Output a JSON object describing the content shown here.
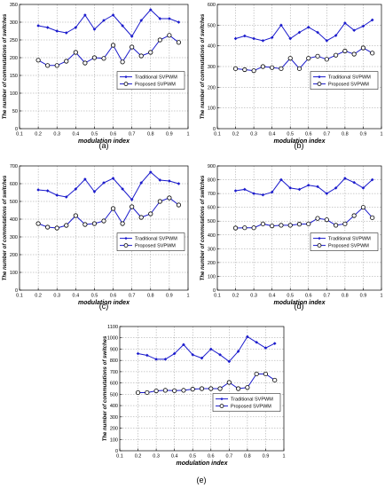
{
  "chart_data": [
    {
      "type": "line",
      "panel_label": "(a)",
      "xlabel": "modulation index",
      "ylabel": "The number of commutations of switches",
      "xlim": [
        0.1,
        1
      ],
      "ylim": [
        0,
        350
      ],
      "xticks": [
        "0.1",
        "0.2",
        "0.3",
        "0.4",
        "0.5",
        "0.6",
        "0.7",
        "0.8",
        "0.9",
        "1"
      ],
      "yticks": [
        "0",
        "50",
        "100",
        "150",
        "200",
        "250",
        "300",
        "350"
      ],
      "yticks_values": [
        0,
        50,
        100,
        150,
        200,
        250,
        300,
        350
      ],
      "grid": true,
      "legend_position": "center-right",
      "x": [
        0.2,
        0.25,
        0.3,
        0.35,
        0.4,
        0.45,
        0.5,
        0.55,
        0.6,
        0.65,
        0.7,
        0.75,
        0.8,
        0.85,
        0.9,
        0.95
      ],
      "series": [
        {
          "name": "Traditional SVPWM",
          "marker": "diamond",
          "values": [
            290,
            285,
            275,
            270,
            285,
            320,
            280,
            305,
            320,
            290,
            260,
            305,
            335,
            310,
            310,
            300
          ]
        },
        {
          "name": "Proposed SVPWM",
          "marker": "circle",
          "values": [
            193,
            178,
            178,
            190,
            215,
            185,
            200,
            198,
            235,
            188,
            230,
            205,
            215,
            250,
            263,
            243
          ]
        }
      ]
    },
    {
      "type": "line",
      "panel_label": "(b)",
      "xlabel": "modulation index",
      "ylabel": "The number of commutations of switches",
      "xlim": [
        0.1,
        1
      ],
      "ylim": [
        0,
        600
      ],
      "xticks": [
        "0.1",
        "0.2",
        "0.3",
        "0.4",
        "0.5",
        "0.6",
        "0.7",
        "0.8",
        "0.9",
        "1"
      ],
      "yticks": [
        "0",
        "100",
        "200",
        "300",
        "400",
        "500",
        "600"
      ],
      "yticks_values": [
        0,
        100,
        200,
        300,
        400,
        500,
        600
      ],
      "grid": true,
      "legend_position": "center-right",
      "x": [
        0.2,
        0.25,
        0.3,
        0.35,
        0.4,
        0.45,
        0.5,
        0.55,
        0.6,
        0.65,
        0.7,
        0.75,
        0.8,
        0.85,
        0.9,
        0.95
      ],
      "series": [
        {
          "name": "Traditional SVPWM",
          "marker": "diamond",
          "values": [
            435,
            448,
            435,
            425,
            440,
            500,
            435,
            465,
            490,
            465,
            425,
            450,
            510,
            475,
            495,
            525
          ]
        },
        {
          "name": "Proposed SVPWM",
          "marker": "circle",
          "values": [
            290,
            285,
            280,
            300,
            295,
            290,
            340,
            290,
            340,
            350,
            335,
            355,
            375,
            360,
            390,
            365
          ]
        }
      ]
    },
    {
      "type": "line",
      "panel_label": "(c)",
      "xlabel": "modulation index",
      "ylabel": "The number of commutations of switches",
      "xlim": [
        0.1,
        1
      ],
      "ylim": [
        0,
        700
      ],
      "xticks": [
        "0.1",
        "0.2",
        "0.3",
        "0.4",
        "0.5",
        "0.6",
        "0.7",
        "0.8",
        "0.9",
        "1"
      ],
      "yticks": [
        "0",
        "100",
        "200",
        "300",
        "400",
        "500",
        "600",
        "700"
      ],
      "yticks_values": [
        0,
        100,
        200,
        300,
        400,
        500,
        600,
        700
      ],
      "grid": true,
      "legend_position": "center-right",
      "x": [
        0.2,
        0.25,
        0.3,
        0.35,
        0.4,
        0.45,
        0.5,
        0.55,
        0.6,
        0.65,
        0.7,
        0.75,
        0.8,
        0.85,
        0.9,
        0.95
      ],
      "series": [
        {
          "name": "Traditional SVPWM",
          "marker": "diamond",
          "values": [
            565,
            560,
            535,
            525,
            570,
            625,
            555,
            605,
            630,
            570,
            510,
            605,
            665,
            620,
            615,
            600
          ]
        },
        {
          "name": "Proposed SVPWM",
          "marker": "circle",
          "values": [
            375,
            355,
            350,
            365,
            420,
            370,
            375,
            390,
            460,
            375,
            470,
            410,
            430,
            500,
            520,
            480
          ]
        }
      ]
    },
    {
      "type": "line",
      "panel_label": "(d)",
      "xlabel": "modulation index",
      "ylabel": "The number of commutations of switches",
      "xlim": [
        0.1,
        1
      ],
      "ylim": [
        0,
        900
      ],
      "xticks": [
        "0.1",
        "0.2",
        "0.3",
        "0.4",
        "0.5",
        "0.6",
        "0.7",
        "0.8",
        "0.9",
        "1"
      ],
      "yticks": [
        "0",
        "100",
        "200",
        "300",
        "400",
        "500",
        "600",
        "700",
        "800",
        "900"
      ],
      "yticks_values": [
        0,
        100,
        200,
        300,
        400,
        500,
        600,
        700,
        800,
        900
      ],
      "grid": true,
      "legend_position": "center-right",
      "x": [
        0.2,
        0.25,
        0.3,
        0.35,
        0.4,
        0.45,
        0.5,
        0.55,
        0.6,
        0.65,
        0.7,
        0.75,
        0.8,
        0.85,
        0.9,
        0.95
      ],
      "series": [
        {
          "name": "Traditional SVPWM",
          "marker": "diamond",
          "values": [
            720,
            730,
            700,
            690,
            710,
            800,
            740,
            730,
            760,
            750,
            700,
            740,
            810,
            780,
            740,
            800
          ]
        },
        {
          "name": "Proposed SVPWM",
          "marker": "circle",
          "values": [
            450,
            452,
            452,
            480,
            465,
            470,
            470,
            478,
            480,
            520,
            510,
            470,
            480,
            540,
            600,
            525
          ]
        }
      ]
    },
    {
      "type": "line",
      "panel_label": "(e)",
      "xlabel": "modulation index",
      "ylabel": "The number of commutations of switches",
      "xlim": [
        0.1,
        1
      ],
      "ylim": [
        0,
        1100
      ],
      "xticks": [
        "0.1",
        "0.2",
        "0.3",
        "0.4",
        "0.5",
        "0.6",
        "0.7",
        "0.8",
        "0.9",
        "1"
      ],
      "yticks": [
        "0",
        "100",
        "200",
        "300",
        "400",
        "500",
        "600",
        "700",
        "800",
        "900",
        "1000",
        "1100"
      ],
      "yticks_values": [
        0,
        100,
        200,
        300,
        400,
        500,
        600,
        700,
        800,
        900,
        1000,
        1100
      ],
      "grid": true,
      "legend_position": "center-right",
      "x": [
        0.2,
        0.25,
        0.3,
        0.35,
        0.4,
        0.45,
        0.5,
        0.55,
        0.6,
        0.65,
        0.7,
        0.75,
        0.8,
        0.85,
        0.9,
        0.95
      ],
      "series": [
        {
          "name": "Traditional SVPWM",
          "marker": "diamond",
          "values": [
            860,
            845,
            810,
            810,
            860,
            940,
            850,
            820,
            900,
            850,
            790,
            880,
            1010,
            960,
            910,
            950
          ]
        },
        {
          "name": "Proposed SVPWM",
          "marker": "circle",
          "values": [
            515,
            515,
            530,
            535,
            532,
            535,
            545,
            550,
            550,
            550,
            605,
            550,
            560,
            680,
            680,
            625
          ]
        }
      ]
    }
  ]
}
